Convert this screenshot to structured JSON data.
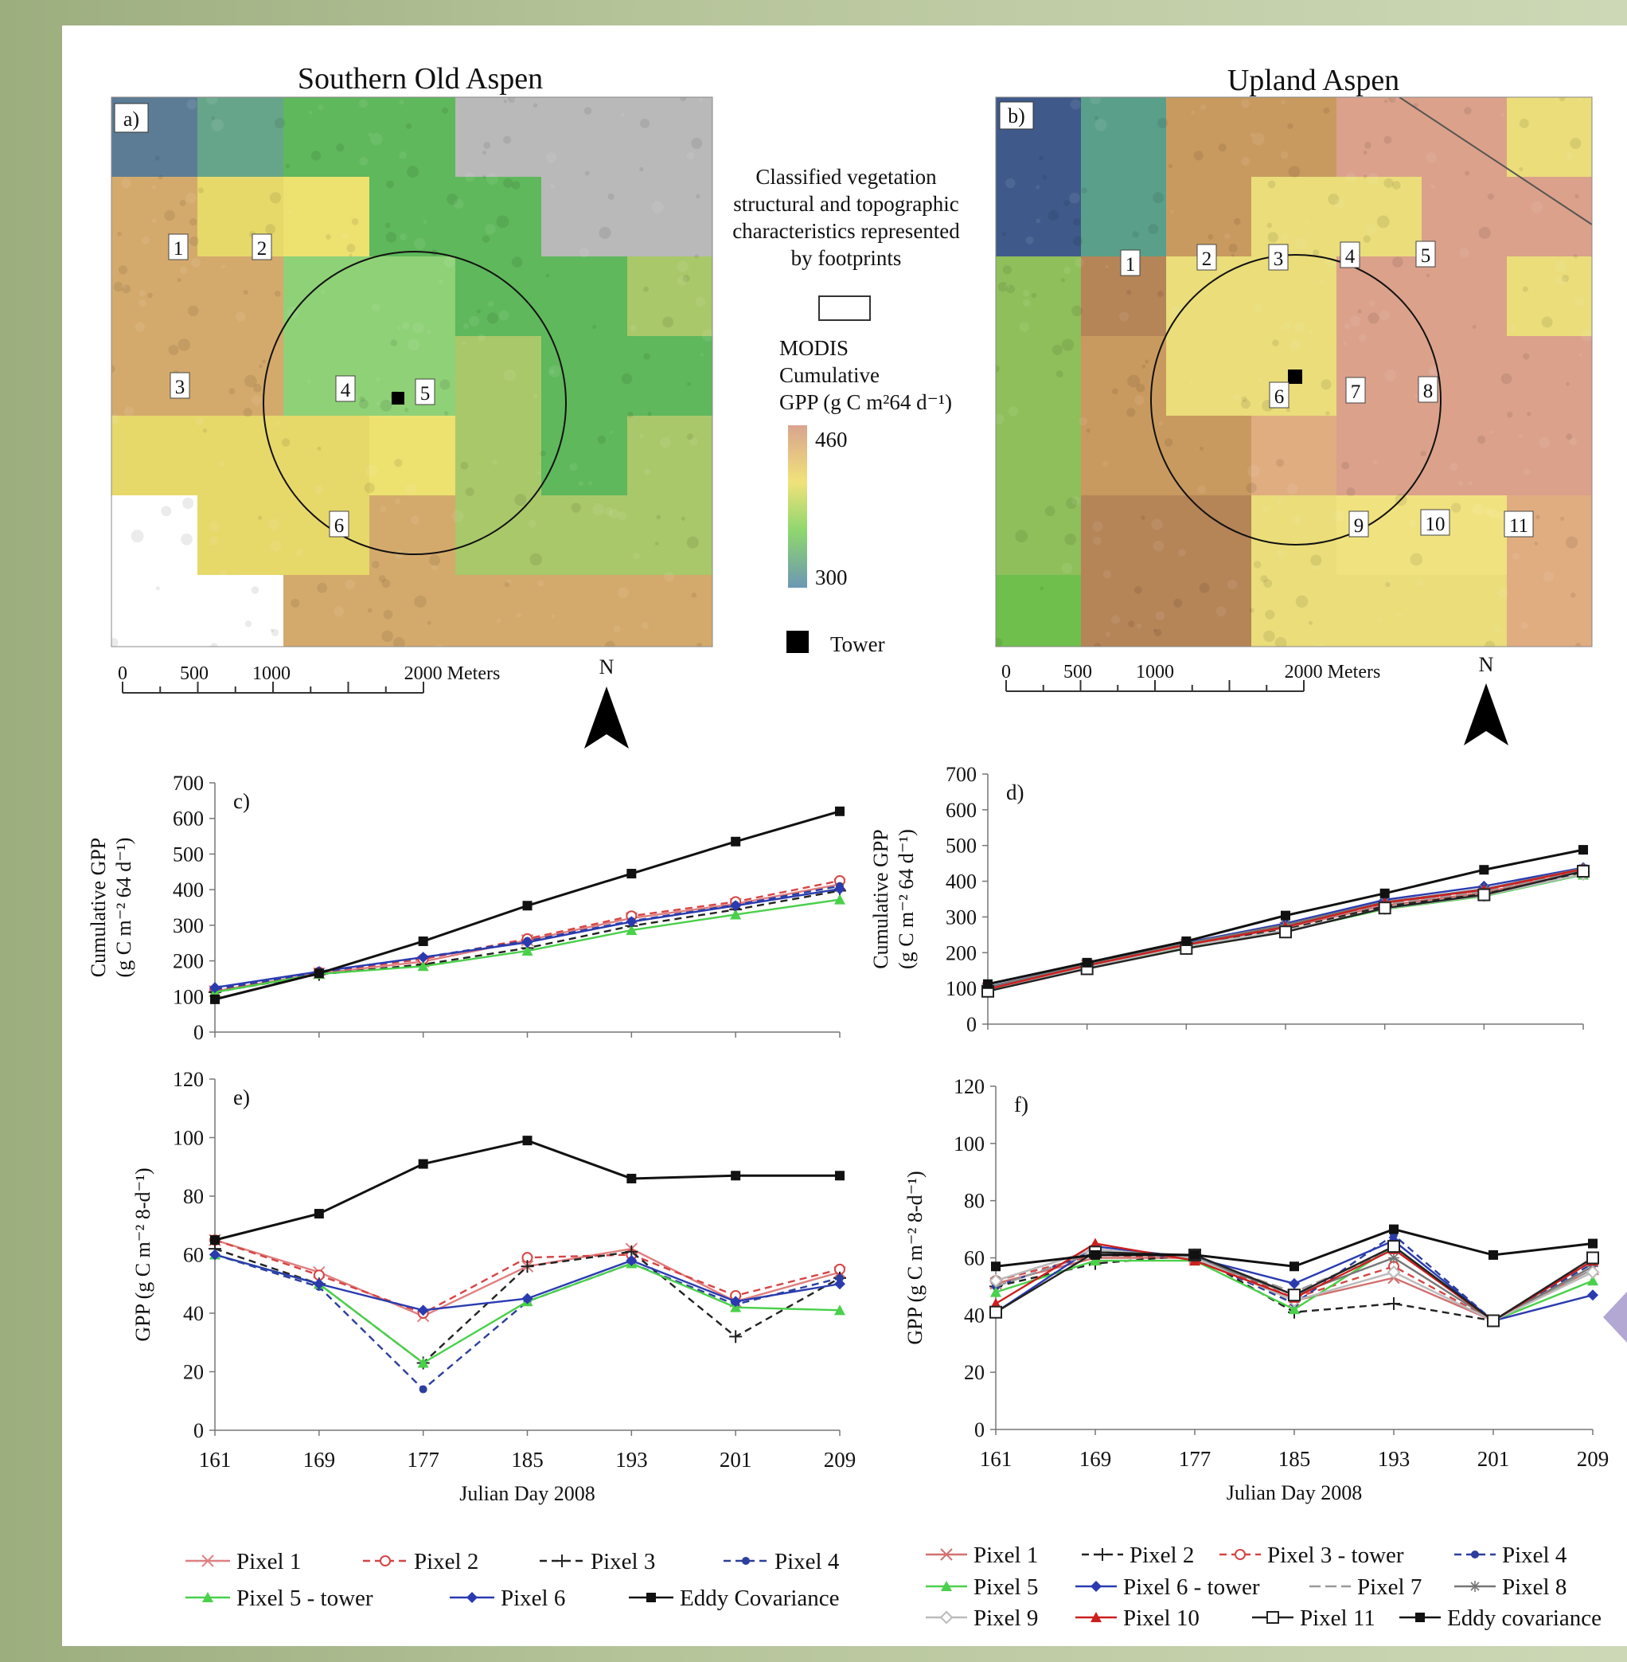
{
  "maps": {
    "a": {
      "title": "Southern Old Aspen",
      "panel_label": "a)",
      "pixel_labels": [
        "1",
        "2",
        "3",
        "4",
        "5",
        "6"
      ],
      "scale": [
        "0",
        "500",
        "1000",
        "2000 Meters"
      ],
      "north": "N"
    },
    "b": {
      "title": "Upland Aspen",
      "panel_label": "b)",
      "pixel_labels": [
        "1",
        "2",
        "3",
        "4",
        "5",
        "6",
        "7",
        "8",
        "9",
        "10",
        "11"
      ],
      "scale": [
        "0",
        "500",
        "1000",
        "2000 Meters"
      ],
      "north": "N"
    }
  },
  "legend_map": {
    "footprint_text": [
      "Classified vegetation",
      "structural and topographic",
      "characteristics represented",
      "by footprints"
    ],
    "modis_text": [
      "MODIS",
      "Cumulative",
      "GPP (g C m²64 d⁻¹)"
    ],
    "high": "460",
    "low": "300",
    "tower": "Tower",
    "colors": [
      "#d9a48e",
      "#f0e27a",
      "#8fd66e",
      "#6c98b4"
    ]
  },
  "chart_data": [
    {
      "type": "line",
      "panel_label": "c)",
      "title": "",
      "xlabel": "",
      "ylabel": [
        "Cumulative GPP",
        "(g C m⁻² 64 d⁻¹)"
      ],
      "ylim": [
        0,
        700
      ],
      "yticks": [
        "0",
        "100",
        "200",
        "300",
        "400",
        "500",
        "600",
        "700"
      ],
      "x": [
        161,
        169,
        177,
        185,
        193,
        201,
        209
      ],
      "series": [
        {
          "name": "Pixel 1",
          "color": "#e07f7f",
          "dash": "",
          "marker": "x",
          "values": [
            115,
            165,
            198,
            258,
            320,
            360,
            415
          ]
        },
        {
          "name": "Pixel 2",
          "color": "#d64545",
          "dash": "9,6",
          "marker": "o",
          "values": [
            118,
            168,
            205,
            262,
            326,
            366,
            425
          ]
        },
        {
          "name": "Pixel 3",
          "color": "#222222",
          "dash": "9,6",
          "marker": "+",
          "values": [
            112,
            162,
            190,
            236,
            298,
            344,
            397
          ]
        },
        {
          "name": "Pixel 4",
          "color": "#2c3f9e",
          "dash": "9,6",
          "marker": "dot",
          "values": [
            120,
            168,
            210,
            256,
            312,
            357,
            410
          ]
        },
        {
          "name": "Pixel 5 - tower",
          "color": "#4ad04a",
          "dash": "",
          "marker": "tri",
          "values": [
            112,
            163,
            185,
            228,
            286,
            330,
            372
          ]
        },
        {
          "name": "Pixel 6",
          "color": "#2a3bb0",
          "dash": "",
          "marker": "diamond",
          "values": [
            125,
            170,
            210,
            252,
            310,
            355,
            402
          ]
        },
        {
          "name": "Eddy Covariance",
          "color": "#111111",
          "dash": "",
          "marker": "square",
          "values": [
            92,
            165,
            255,
            355,
            445,
            535,
            620
          ]
        }
      ]
    },
    {
      "type": "line",
      "panel_label": "d)",
      "title": "",
      "xlabel": "",
      "ylabel": [
        "Cumulative GPP",
        "(g C m⁻² 64 d⁻¹)"
      ],
      "ylim": [
        0,
        700
      ],
      "yticks": [
        "0",
        "100",
        "200",
        "300",
        "400",
        "500",
        "600",
        "700"
      ],
      "x": [
        161,
        169,
        177,
        185,
        193,
        201,
        209
      ],
      "series": [
        {
          "name": "Pixel 1",
          "color": "#d27070",
          "dash": "",
          "marker": "x",
          "values": [
            100,
            165,
            222,
            270,
            332,
            368,
            428
          ]
        },
        {
          "name": "Pixel 2",
          "color": "#222222",
          "dash": "9,6",
          "marker": "+",
          "values": [
            98,
            164,
            220,
            265,
            330,
            364,
            425
          ]
        },
        {
          "name": "Pixel 3 - tower",
          "color": "#d64545",
          "dash": "9,6",
          "marker": "o",
          "values": [
            100,
            166,
            225,
            275,
            338,
            375,
            432
          ]
        },
        {
          "name": "Pixel 4",
          "color": "#2c3f9e",
          "dash": "9,6",
          "marker": "dot",
          "values": [
            102,
            168,
            226,
            276,
            340,
            378,
            435
          ]
        },
        {
          "name": "Pixel 5",
          "color": "#4ad04a",
          "dash": "",
          "marker": "tri",
          "values": [
            95,
            158,
            215,
            260,
            322,
            358,
            418
          ]
        },
        {
          "name": "Pixel 6 - tower",
          "color": "#2a3bb0",
          "dash": "",
          "marker": "diamond",
          "values": [
            104,
            168,
            228,
            282,
            348,
            386,
            438
          ]
        },
        {
          "name": "Pixel 7",
          "color": "#999999",
          "dash": "14,6",
          "marker": "",
          "values": [
            101,
            166,
            224,
            273,
            336,
            372,
            430
          ]
        },
        {
          "name": "Pixel 8",
          "color": "#777777",
          "dash": "",
          "marker": "star",
          "values": [
            103,
            168,
            226,
            278,
            342,
            378,
            436
          ]
        },
        {
          "name": "Pixel 9",
          "color": "#bbbbbb",
          "dash": "",
          "marker": "odiamond",
          "values": [
            96,
            160,
            218,
            262,
            324,
            360,
            420
          ]
        },
        {
          "name": "Pixel 10",
          "color": "#cc1f1f",
          "dash": "",
          "marker": "tri",
          "values": [
            98,
            164,
            222,
            272,
            340,
            376,
            434
          ]
        },
        {
          "name": "Pixel 11",
          "color": "#222222",
          "dash": "",
          "marker": "osquare",
          "values": [
            92,
            155,
            212,
            258,
            325,
            362,
            428
          ]
        },
        {
          "name": "Eddy covariance",
          "color": "#111111",
          "dash": "",
          "marker": "square",
          "values": [
            112,
            172,
            232,
            304,
            366,
            432,
            488
          ]
        }
      ]
    },
    {
      "type": "line",
      "panel_label": "e)",
      "title": "",
      "xlabel": "Julian Day 2008",
      "ylabel": [
        "GPP (g C m⁻² 8-d⁻¹)"
      ],
      "ylim": [
        0,
        120
      ],
      "yticks": [
        "0",
        "20",
        "40",
        "60",
        "80",
        "100",
        "120"
      ],
      "x": [
        161,
        169,
        177,
        185,
        193,
        201,
        209
      ],
      "xticks": [
        "161",
        "169",
        "177",
        "185",
        "193",
        "201",
        "209"
      ],
      "series": [
        {
          "name": "Pixel 1",
          "color": "#e07f7f",
          "dash": "",
          "marker": "x",
          "values": [
            65,
            54,
            39,
            56,
            62,
            44,
            54
          ]
        },
        {
          "name": "Pixel 2",
          "color": "#d64545",
          "dash": "9,6",
          "marker": "o",
          "values": [
            65,
            53,
            40,
            59,
            60,
            46,
            55
          ]
        },
        {
          "name": "Pixel 3",
          "color": "#222222",
          "dash": "9,6",
          "marker": "+",
          "values": [
            62,
            50,
            23,
            56,
            61,
            32,
            52
          ]
        },
        {
          "name": "Pixel 4",
          "color": "#2c3f9e",
          "dash": "9,6",
          "marker": "dot",
          "values": [
            60,
            49,
            14,
            44,
            57,
            43,
            52
          ]
        },
        {
          "name": "Pixel 5 - tower",
          "color": "#4ad04a",
          "dash": "",
          "marker": "tri",
          "values": [
            60,
            50,
            23,
            44,
            57,
            42,
            41
          ]
        },
        {
          "name": "Pixel 6",
          "color": "#2a3bb0",
          "dash": "",
          "marker": "diamond",
          "values": [
            60,
            50,
            41,
            45,
            58,
            44,
            50
          ]
        },
        {
          "name": "Eddy Covariance",
          "color": "#111111",
          "dash": "",
          "marker": "square",
          "values": [
            65,
            74,
            91,
            99,
            86,
            87,
            87
          ]
        }
      ]
    },
    {
      "type": "line",
      "panel_label": "f)",
      "title": "",
      "xlabel": "Julian Day 2008",
      "ylabel": [
        "GPP (g C m⁻² 8-d⁻¹)"
      ],
      "ylim": [
        0,
        120
      ],
      "yticks": [
        "0",
        "20",
        "40",
        "60",
        "80",
        "100",
        "120"
      ],
      "x": [
        161,
        169,
        177,
        185,
        193,
        201,
        209
      ],
      "xticks": [
        "161",
        "169",
        "177",
        "185",
        "193",
        "201",
        "209"
      ],
      "series": [
        {
          "name": "Pixel 1",
          "color": "#d27070",
          "dash": "",
          "marker": "x",
          "values": [
            51,
            60,
            60,
            45,
            53,
            38,
            56
          ]
        },
        {
          "name": "Pixel 2",
          "color": "#222222",
          "dash": "9,6",
          "marker": "+",
          "values": [
            50,
            58,
            61,
            41,
            44,
            38,
            59
          ]
        },
        {
          "name": "Pixel 3 - tower",
          "color": "#d64545",
          "dash": "9,6",
          "marker": "o",
          "values": [
            52,
            61,
            60,
            46,
            57,
            38,
            60
          ]
        },
        {
          "name": "Pixel 4",
          "color": "#2c3f9e",
          "dash": "9,6",
          "marker": "dot",
          "values": [
            50,
            62,
            60,
            44,
            68,
            38,
            58
          ]
        },
        {
          "name": "Pixel 5",
          "color": "#4ad04a",
          "dash": "",
          "marker": "tri",
          "values": [
            48,
            59,
            59,
            42,
            64,
            38,
            52
          ]
        },
        {
          "name": "Pixel 6 - tower",
          "color": "#2a3bb0",
          "dash": "",
          "marker": "diamond",
          "values": [
            41,
            64,
            60,
            51,
            66,
            38,
            47
          ]
        },
        {
          "name": "Pixel 7",
          "color": "#999999",
          "dash": "14,6",
          "marker": "",
          "values": [
            50,
            62,
            60,
            48,
            63,
            38,
            56
          ]
        },
        {
          "name": "Pixel 8",
          "color": "#777777",
          "dash": "",
          "marker": "star",
          "values": [
            52,
            63,
            60,
            47,
            60,
            38,
            57
          ]
        },
        {
          "name": "Pixel 9",
          "color": "#bbbbbb",
          "dash": "",
          "marker": "odiamond",
          "values": [
            52,
            63,
            60,
            45,
            55,
            38,
            55
          ]
        },
        {
          "name": "Pixel 10",
          "color": "#cc1f1f",
          "dash": "",
          "marker": "tri",
          "values": [
            44,
            65,
            59,
            46,
            63,
            38,
            59
          ]
        },
        {
          "name": "Pixel 11",
          "color": "#222222",
          "dash": "",
          "marker": "osquare",
          "values": [
            41,
            62,
            61,
            47,
            64,
            38,
            60
          ]
        },
        {
          "name": "Eddy covariance",
          "color": "#111111",
          "dash": "",
          "marker": "square",
          "values": [
            57,
            61,
            61,
            57,
            70,
            61,
            65
          ]
        }
      ]
    }
  ]
}
